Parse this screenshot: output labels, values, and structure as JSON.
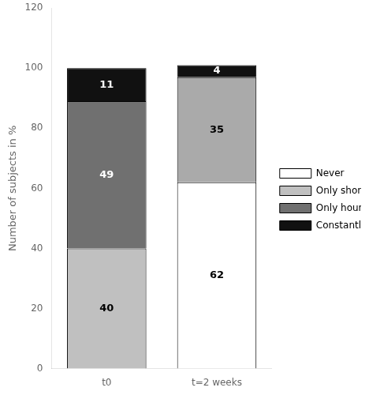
{
  "chart_data": {
    "type": "bar",
    "stacked": true,
    "categories": [
      "t0",
      "t=2 weeks"
    ],
    "series": [
      {
        "name": "Never",
        "color": "#ffffff",
        "values": [
          null,
          62
        ]
      },
      {
        "name": "Only short term",
        "color": "#c0c0c0",
        "colors": [
          "#c0c0c0",
          "#aaaaaa"
        ],
        "values": [
          40,
          35
        ]
      },
      {
        "name": "Only hourly",
        "color": "#707070",
        "values": [
          49,
          null
        ]
      },
      {
        "name": "Constantly",
        "color": "#111111",
        "values": [
          11,
          4
        ]
      }
    ],
    "ylabel": "Number of subjects in %",
    "ylim": [
      0,
      120
    ],
    "yticks": [
      0,
      20,
      40,
      60,
      80,
      100,
      120
    ],
    "grid": false,
    "legend": "right",
    "data_labels": true
  }
}
